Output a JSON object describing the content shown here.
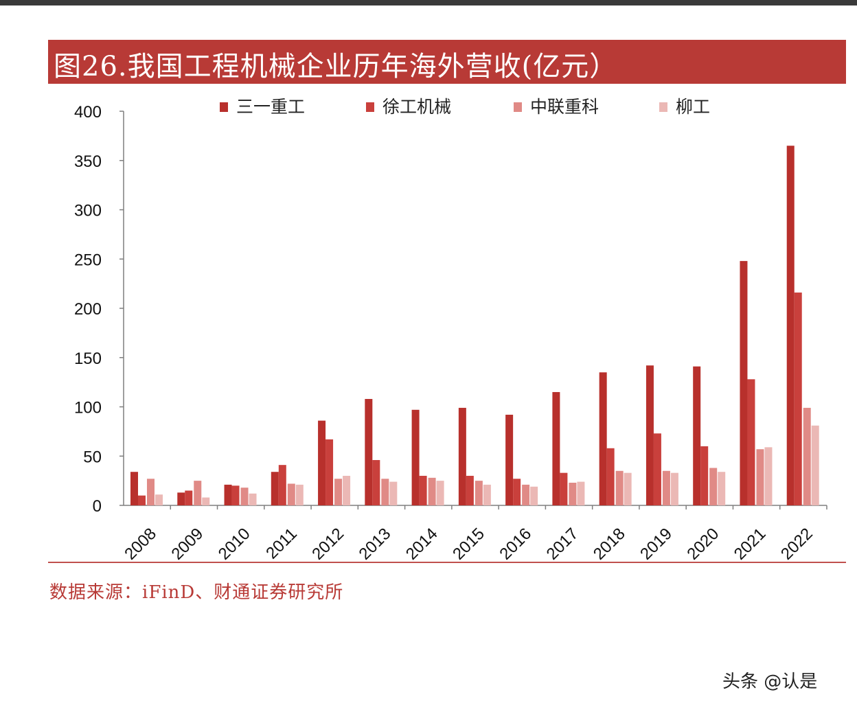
{
  "title": "图26.我国工程机械企业历年海外营收(亿元）",
  "source": "数据来源：iFinD、财通证券研究所",
  "watermark": "头条 @认是",
  "colors": {
    "title_bg": "#b83a36",
    "series": [
      "#b8302c",
      "#c9403c",
      "#e08a86",
      "#ebb8b5"
    ]
  },
  "chart_data": {
    "type": "bar",
    "categories": [
      "2008",
      "2009",
      "2010",
      "2011",
      "2012",
      "2013",
      "2014",
      "2015",
      "2016",
      "2017",
      "2018",
      "2019",
      "2020",
      "2021",
      "2022"
    ],
    "series": [
      {
        "name": "三一重工",
        "values": [
          34,
          13,
          21,
          34,
          86,
          108,
          97,
          99,
          92,
          115,
          135,
          142,
          141,
          248,
          365
        ]
      },
      {
        "name": "徐工机械",
        "values": [
          10,
          15,
          20,
          41,
          67,
          46,
          30,
          30,
          27,
          33,
          58,
          73,
          60,
          128,
          216
        ]
      },
      {
        "name": "中联重科",
        "values": [
          27,
          25,
          18,
          22,
          27,
          27,
          28,
          25,
          21,
          23,
          35,
          35,
          38,
          57,
          99
        ]
      },
      {
        "name": "柳工",
        "values": [
          11,
          8,
          12,
          21,
          30,
          24,
          25,
          21,
          19,
          24,
          33,
          33,
          34,
          59,
          81
        ]
      }
    ],
    "yticks": [
      "0",
      "50",
      "100",
      "150",
      "200",
      "250",
      "300",
      "350",
      "400"
    ],
    "ylim": [
      0,
      400
    ],
    "legend_position": "top",
    "grid": false,
    "xlabel": "",
    "ylabel": ""
  }
}
